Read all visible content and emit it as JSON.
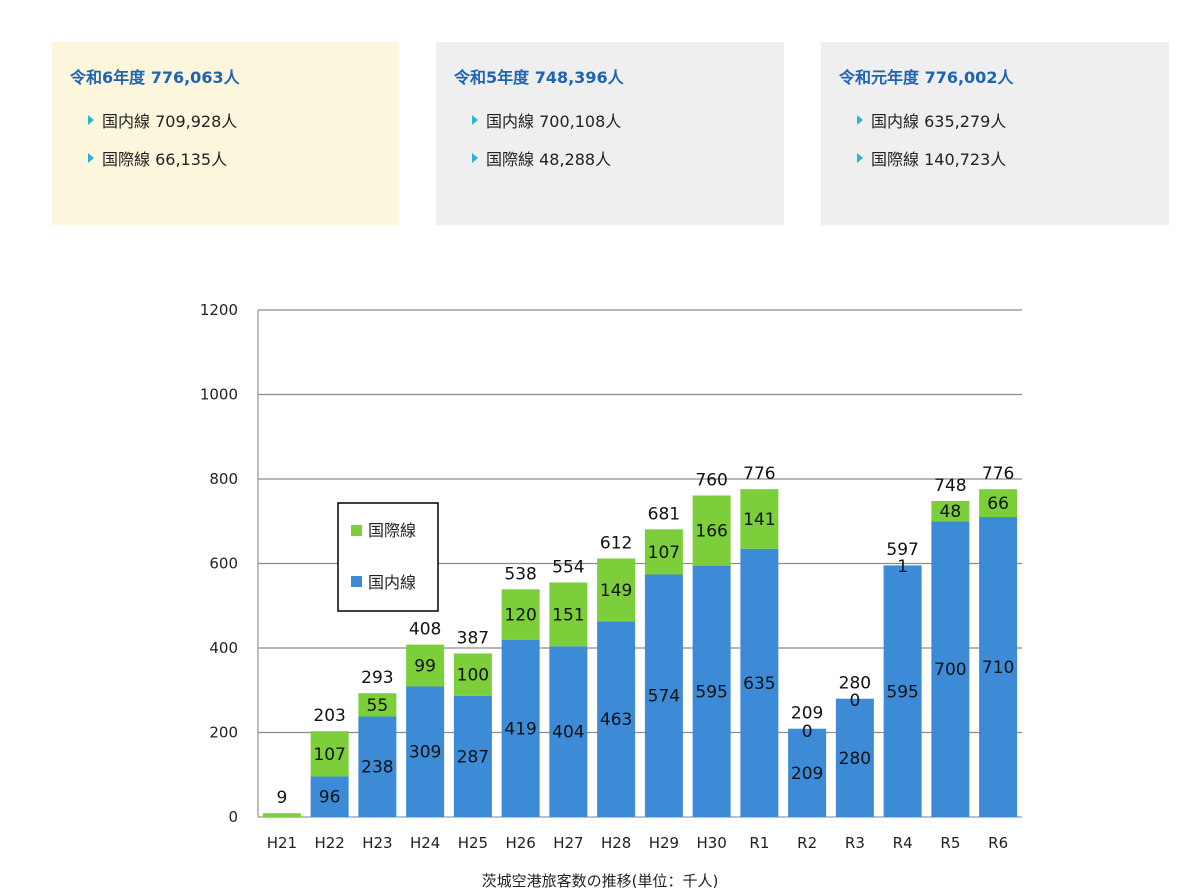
{
  "cards": [
    {
      "title": "令和6年度 776,063人",
      "rows": [
        "国内線 709,928人",
        "国際線 66,135人"
      ]
    },
    {
      "title": "令和5年度 748,396人",
      "rows": [
        "国内線 700,108人",
        "国際線 48,288人"
      ]
    },
    {
      "title": "令和元年度 776,002人",
      "rows": [
        "国内線 635,279人",
        "国際線 140,723人"
      ]
    }
  ],
  "colors": {
    "domestic": "#3d8bd6",
    "international": "#7ccf3b"
  },
  "chart_data": {
    "type": "bar",
    "stacked": true,
    "categories": [
      "H21",
      "H22",
      "H23",
      "H24",
      "H25",
      "H26",
      "H27",
      "H28",
      "H29",
      "H30",
      "R1",
      "R2",
      "R3",
      "R4",
      "R5",
      "R6"
    ],
    "series": [
      {
        "name": "国内線",
        "values": [
          0,
          96,
          238,
          309,
          287,
          419,
          404,
          463,
          574,
          595,
          635,
          209,
          280,
          595,
          700,
          710
        ]
      },
      {
        "name": "国際線",
        "values": [
          9,
          107,
          55,
          99,
          100,
          120,
          151,
          149,
          107,
          166,
          141,
          0,
          0,
          1,
          48,
          66
        ]
      }
    ],
    "inner_labels": {
      "domestic": [
        "",
        "96",
        "238",
        "309",
        "287",
        "419",
        "404",
        "463",
        "574",
        "595",
        "635",
        "209",
        "280",
        "595",
        "700",
        "710"
      ],
      "international": [
        "",
        "107",
        "55",
        "99",
        "100",
        "120",
        "151",
        "149",
        "107",
        "166",
        "141",
        "0",
        "0",
        "1",
        "48",
        "66"
      ]
    },
    "totals": [
      9,
      203,
      293,
      408,
      387,
      538,
      554,
      612,
      681,
      760,
      776,
      209,
      280,
      597,
      748,
      776
    ],
    "yticks": [
      0,
      200,
      400,
      600,
      800,
      1000,
      1200
    ],
    "ylim": [
      0,
      1200
    ],
    "grid": true,
    "legend_position": "left",
    "title": "茨城空港旅客数の推移(単位：千人)"
  }
}
